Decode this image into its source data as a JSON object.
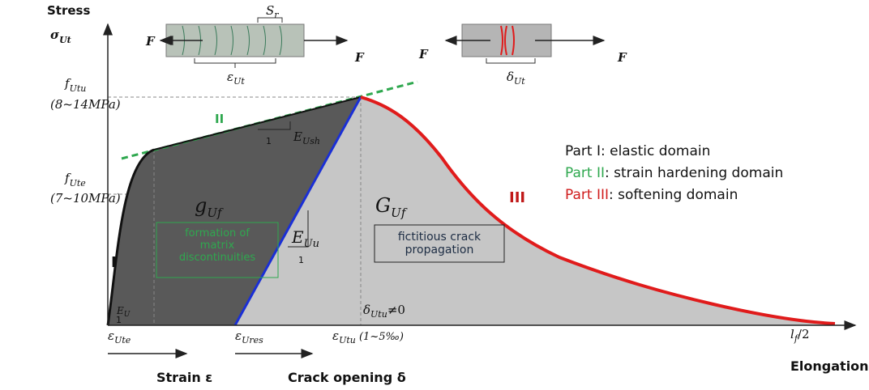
{
  "axes": {
    "y_title": "Stress",
    "y_symbol": {
      "symbol": "σ",
      "subscript": "Ut"
    },
    "x_title": "Elongation"
  },
  "y_labels": [
    {
      "symbol": "f",
      "subscript": "Utu",
      "range": "(8~14MPa)"
    },
    {
      "symbol": "f",
      "subscript": "Ute",
      "range": "(7~10MPa)"
    }
  ],
  "specimens": [
    {
      "force_left": "F",
      "force_right": "F",
      "spacing": {
        "symbol": "S",
        "subscript": "r"
      },
      "measure": {
        "symbol": "ε",
        "subscript": "Ut"
      }
    },
    {
      "force_left": "F",
      "force_right": "F",
      "measure": {
        "symbol": "δ",
        "subscript": "Ut"
      }
    }
  ],
  "parts": {
    "elastic": {
      "label": "I",
      "modulus": {
        "symbol": "E",
        "subscript": "U"
      },
      "unit": "1"
    },
    "hardening": {
      "label": "II",
      "modulus": {
        "symbol": "E",
        "subscript": "Ush"
      },
      "unit": "1"
    },
    "softening": {
      "label": "III"
    }
  },
  "regions": {
    "g": {
      "symbol": "g",
      "subscript": "Uf",
      "box": "formation of matrix discontinuities"
    },
    "G": {
      "symbol": "G",
      "subscript": "Uf",
      "box": "fictitious crack propagation"
    },
    "unloading": {
      "symbol": "E",
      "subscript": "Uu",
      "unit": "1"
    }
  },
  "delta_note": {
    "symbol": "δ",
    "subscript": "Utu",
    "text": "≠0"
  },
  "x_labels": [
    {
      "symbol": "ε",
      "subscript": "Ute"
    },
    {
      "symbol": "ε",
      "subscript": "Ures"
    },
    {
      "symbol": "ε",
      "subscript": "Utu",
      "note": " (1~5‰)"
    },
    {
      "symbol": "l",
      "subscript": "f",
      "note": "/2"
    }
  ],
  "bottom": {
    "strain": "Strain ε",
    "crack": "Crack opening δ"
  },
  "legend": [
    {
      "part": "Part I",
      "text": ": elastic domain"
    },
    {
      "part": "Part II",
      "text": ": strain hardening domain"
    },
    {
      "part": "Part III",
      "text": ": softening domain"
    }
  ]
}
